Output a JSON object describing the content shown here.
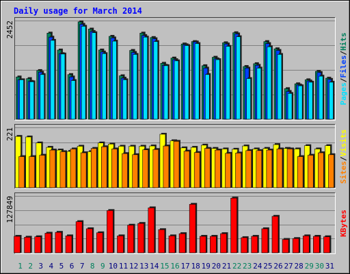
{
  "title": "Daily usage for March 2014",
  "colors": {
    "background": "#C0C0C0",
    "hits": "#00805C",
    "files": "#0040FF",
    "pages": "#00E0FF",
    "visits": "#FFFF00",
    "sites": "#FF8000",
    "kbytes": "#FF0000",
    "title": "#0000FF",
    "weekday_label": "#000080",
    "weekend_label": "#00805C"
  },
  "chart_data": [
    {
      "type": "bar",
      "panel": "hits_files_pages",
      "ylabel": [
        "Pages",
        "Files",
        "Hits"
      ],
      "ytick": "2452",
      "ylim": [
        0,
        2452
      ],
      "grid": true,
      "categories": [
        "1",
        "2",
        "3",
        "4",
        "5",
        "6",
        "7",
        "8",
        "9",
        "10",
        "11",
        "12",
        "13",
        "14",
        "15",
        "16",
        "17",
        "18",
        "19",
        "20",
        "21",
        "22",
        "23",
        "24",
        "25",
        "26",
        "27",
        "28",
        "29",
        "30",
        "31"
      ],
      "series": [
        {
          "name": "Hits",
          "values": [
            1050,
            1010,
            1210,
            2140,
            1720,
            1110,
            2420,
            2240,
            1720,
            2060,
            1080,
            1710,
            2140,
            2030,
            1390,
            1520,
            1870,
            1930,
            1330,
            1540,
            1900,
            2150,
            1310,
            1380,
            1930,
            1750,
            760,
            880,
            980,
            1190,
            1020
          ]
        },
        {
          "name": "Files",
          "values": [
            980,
            940,
            1170,
            2040,
            1630,
            1050,
            2360,
            2180,
            1670,
            2020,
            1020,
            1660,
            2080,
            2000,
            1340,
            1480,
            1850,
            1920,
            1270,
            1500,
            1870,
            2120,
            1270,
            1340,
            1880,
            1710,
            690,
            850,
            950,
            1160,
            990
          ]
        },
        {
          "name": "Pages",
          "values": [
            980,
            930,
            1110,
            1960,
            1620,
            960,
            2310,
            2150,
            1630,
            1940,
            980,
            1610,
            2040,
            1930,
            1330,
            1450,
            1830,
            1880,
            1110,
            1480,
            1810,
            2050,
            1010,
            1270,
            1800,
            1610,
            640,
            830,
            920,
            1070,
            920
          ]
        }
      ]
    },
    {
      "type": "bar",
      "panel": "visits_sites",
      "ylabel": [
        "Sites",
        "Visits"
      ],
      "ytick": "221",
      "ylim": [
        0,
        221
      ],
      "grid": true,
      "categories": [
        "1",
        "2",
        "3",
        "4",
        "5",
        "6",
        "7",
        "8",
        "9",
        "10",
        "11",
        "12",
        "13",
        "14",
        "15",
        "16",
        "17",
        "18",
        "19",
        "20",
        "21",
        "22",
        "23",
        "24",
        "25",
        "26",
        "27",
        "28",
        "29",
        "30",
        "31"
      ],
      "series": [
        {
          "name": "Visits",
          "values": [
            188,
            186,
            164,
            148,
            138,
            133,
            152,
            132,
            164,
            160,
            152,
            152,
            152,
            153,
            196,
            172,
            146,
            148,
            156,
            144,
            142,
            141,
            153,
            142,
            144,
            158,
            144,
            142,
            154,
            142,
            154
          ]
        },
        {
          "name": "Sites",
          "values": [
            114,
            114,
            119,
            138,
            132,
            142,
            128,
            144,
            150,
            142,
            125,
            121,
            139,
            140,
            153,
            170,
            134,
            129,
            144,
            138,
            126,
            127,
            136,
            136,
            138,
            142,
            142,
            114,
            119,
            128,
            121
          ]
        }
      ]
    },
    {
      "type": "bar",
      "panel": "kbytes",
      "ylabel": [
        "KBytes"
      ],
      "ytick": "127849",
      "ylim": [
        0,
        127849
      ],
      "grid": true,
      "categories": [
        "1",
        "2",
        "3",
        "4",
        "5",
        "6",
        "7",
        "8",
        "9",
        "10",
        "11",
        "12",
        "13",
        "14",
        "15",
        "16",
        "17",
        "18",
        "19",
        "20",
        "21",
        "22",
        "23",
        "24",
        "25",
        "26",
        "27",
        "28",
        "29",
        "30",
        "31"
      ],
      "series": [
        {
          "name": "KBytes",
          "values": [
            37000,
            35000,
            36000,
            44000,
            46000,
            38000,
            70000,
            54000,
            45000,
            95000,
            38000,
            62000,
            66000,
            101000,
            52000,
            38000,
            43000,
            109000,
            37000,
            37000,
            43000,
            123000,
            34000,
            37000,
            54000,
            82000,
            30000,
            32000,
            38000,
            37000,
            36000
          ]
        }
      ]
    }
  ],
  "weekend_days": [
    "1",
    "2",
    "8",
    "9",
    "15",
    "16",
    "22",
    "23",
    "29",
    "30"
  ]
}
